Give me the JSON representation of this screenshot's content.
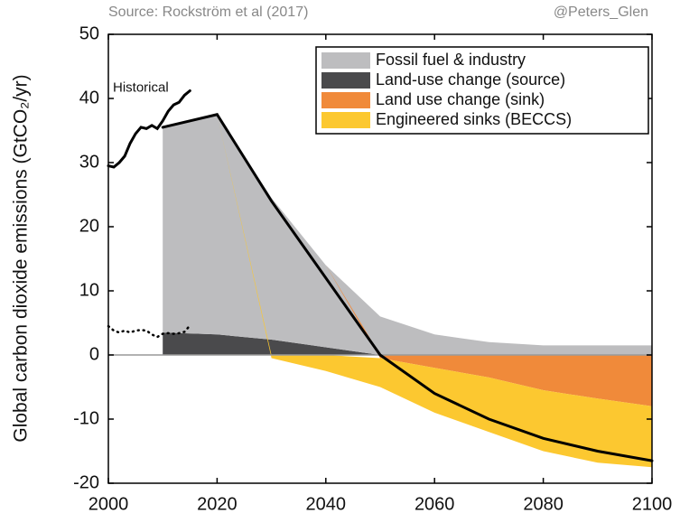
{
  "chart_data": {
    "type": "area",
    "source": "Source: Rockström et al (2017)",
    "credit": "@Peters_Glen",
    "ylabel": "Global carbon dioxide emissions (GtCO₂/yr)",
    "x": [
      2010,
      2020,
      2030,
      2040,
      2050,
      2060,
      2070,
      2080,
      2090,
      2100
    ],
    "series": [
      {
        "name": "Fossil fuel & industry",
        "color": "#bdbdbf",
        "values": [
          32,
          34.3,
          22.1,
          12.8,
          6,
          3.2,
          2,
          1.5,
          1.5,
          1.5
        ]
      },
      {
        "name": "Land-use change (source)",
        "color": "#4a4a4c",
        "values": [
          3.5,
          3.2,
          2.4,
          1.2,
          0,
          0,
          0,
          0,
          0,
          0
        ]
      },
      {
        "name": "Land use change (sink)",
        "color": "#f08a3a",
        "values": [
          0,
          0,
          0,
          0,
          -0.5,
          -2,
          -3.5,
          -5.5,
          -6.8,
          -8
        ]
      },
      {
        "name": "Engineered sinks (BECCS)",
        "color": "#fcc830",
        "values": [
          0,
          0,
          -0.5,
          -2.5,
          -4.5,
          -7,
          -8.5,
          -9.5,
          -10,
          -9.5
        ]
      }
    ],
    "lines": [
      {
        "name": "Historical",
        "color": "#000000",
        "style": "solid",
        "x": [
          2000,
          2001,
          2002,
          2003,
          2004,
          2005,
          2006,
          2007,
          2008,
          2009,
          2010,
          2011,
          2012,
          2013,
          2014,
          2015
        ],
        "values": [
          29.5,
          29.3,
          30,
          31,
          33,
          34.5,
          35.5,
          35.3,
          35.8,
          35.3,
          36.5,
          38,
          39,
          39.4,
          40.5,
          41.2
        ]
      },
      {
        "color": "#000000",
        "style": "dotted",
        "x": [
          2000,
          2001,
          2002,
          2003,
          2004,
          2005,
          2006,
          2007,
          2008,
          2009,
          2010,
          2011,
          2012,
          2013,
          2014,
          2015
        ],
        "values": [
          4.5,
          3.8,
          3.5,
          3.8,
          3.5,
          3.8,
          3.9,
          3.8,
          3.2,
          2.8,
          3.3,
          3.4,
          3.3,
          3.4,
          3.6,
          4.6
        ]
      },
      {
        "color": "#000000",
        "style": "solid",
        "x": [
          2010,
          2020,
          2030,
          2040,
          2050,
          2060,
          2070,
          2080,
          2090,
          2100
        ],
        "values": [
          35.5,
          37.5,
          24,
          12,
          0,
          -6,
          -10,
          -13,
          -15,
          -16.5
        ]
      }
    ],
    "xlim": [
      2000,
      2100
    ],
    "xticks": [
      2000,
      2020,
      2040,
      2060,
      2080,
      2100
    ],
    "ylim": [
      -20,
      50
    ],
    "yticks": [
      -20,
      -10,
      0,
      10,
      20,
      30,
      40,
      50
    ],
    "legend": "upper right"
  }
}
